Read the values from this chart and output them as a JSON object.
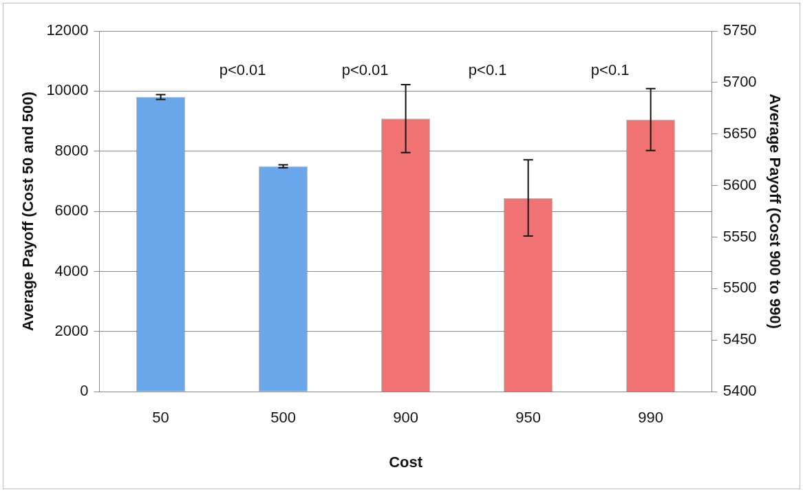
{
  "chart_data": {
    "type": "bar",
    "xlabel": "Cost",
    "ylabel": "Average Payoff (Cost 50 and 500)",
    "y2label": "Average Payoff (Cost 900 to 990)",
    "categories": [
      "50",
      "500",
      "900",
      "950",
      "990"
    ],
    "series": [
      {
        "color": "#6aa6ea",
        "values": [
          9800,
          7500,
          null,
          null,
          null
        ],
        "errors": [
          80,
          50,
          null,
          null,
          null
        ]
      },
      {
        "color": "#f07272",
        "axis": "y2",
        "values": [
          null,
          null,
          5665,
          5588,
          5664
        ],
        "errors": [
          null,
          null,
          33,
          37,
          30
        ]
      }
    ],
    "ylim": [
      0,
      12000
    ],
    "yticks": [
      0,
      2000,
      4000,
      6000,
      8000,
      10000,
      12000
    ],
    "y2lim": [
      5400,
      5750
    ],
    "y2ticks": [
      5400,
      5450,
      5500,
      5550,
      5600,
      5650,
      5700,
      5750
    ],
    "annotations": [
      "p<0.01",
      "p<0.01",
      "p<0.1",
      "p<0.1"
    ],
    "grid": "y",
    "legend": false
  }
}
